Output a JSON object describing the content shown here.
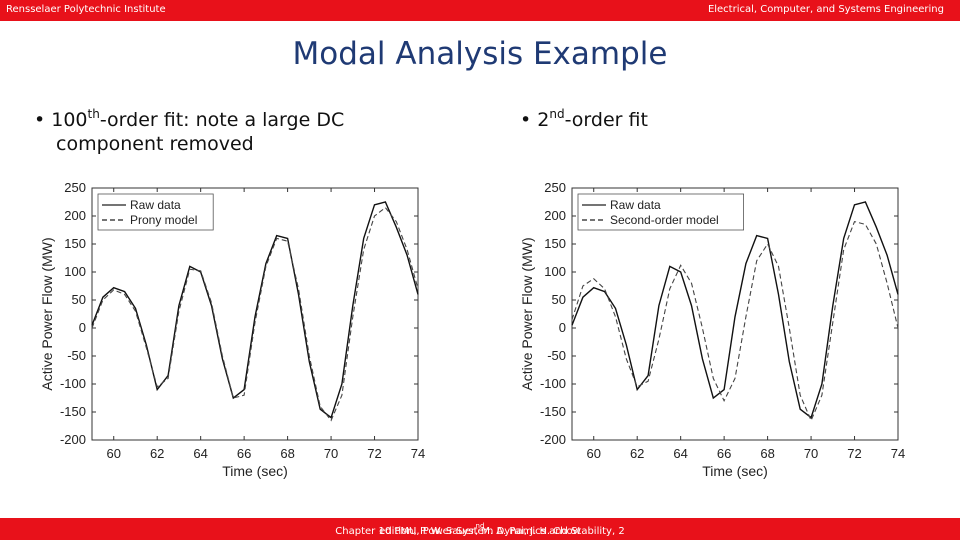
{
  "header": {
    "left": "Rensselaer Polytechnic Institute",
    "right": "Electrical, Computer, and Systems Engineering"
  },
  "title": "Modal Analysis Example",
  "bullets": {
    "left": {
      "prefix": "• 100",
      "sup": "th",
      "rest": "-order fit: note a large DC",
      "line2": "component removed"
    },
    "right": {
      "prefix": "• 2",
      "sup": "nd",
      "rest": "-order fit"
    }
  },
  "footer": {
    "pre": "Chapter 10 PMU, Power System Dynamics and Stability, 2",
    "sup": "nd",
    "post": " edition, P. W. Sauer, M. A. Pai, J. H. Chow"
  },
  "chart_data": [
    {
      "type": "line",
      "xlabel": "Time (sec)",
      "ylabel": "Active Power Flow (MW)",
      "xlim": [
        59,
        74
      ],
      "ylim": [
        -200,
        250
      ],
      "xticks": [
        "60",
        "62",
        "64",
        "66",
        "68",
        "70",
        "72",
        "74"
      ],
      "yticks": [
        "250",
        "200",
        "150",
        "100",
        "50",
        "0",
        "-50",
        "-100",
        "-150",
        "-200"
      ],
      "legend_position": "top-left",
      "series": [
        {
          "name": "Raw data",
          "style": "solid",
          "x": [
            59,
            59.5,
            60,
            60.5,
            61,
            61.5,
            62,
            62.5,
            63,
            63.5,
            64,
            64.5,
            65,
            65.5,
            66,
            66.5,
            67,
            67.5,
            68,
            68.5,
            69,
            69.5,
            70,
            70.5,
            71,
            71.5,
            72,
            72.5,
            73,
            73.5,
            74
          ],
          "y": [
            5,
            55,
            72,
            65,
            35,
            -30,
            -110,
            -85,
            40,
            110,
            100,
            40,
            -55,
            -125,
            -110,
            20,
            115,
            165,
            160,
            60,
            -60,
            -145,
            -160,
            -100,
            40,
            160,
            220,
            225,
            180,
            130,
            60
          ]
        },
        {
          "name": "Prony model",
          "style": "dashed",
          "x": [
            59,
            59.5,
            60,
            60.5,
            61,
            61.5,
            62,
            62.5,
            63,
            63.5,
            64,
            64.5,
            65,
            65.5,
            66,
            66.5,
            67,
            67.5,
            68,
            68.5,
            69,
            69.5,
            70,
            70.5,
            71,
            71.5,
            72,
            72.5,
            73,
            73.5,
            74
          ],
          "y": [
            0,
            50,
            68,
            60,
            30,
            -35,
            -105,
            -90,
            30,
            105,
            102,
            45,
            -50,
            -125,
            -120,
            10,
            110,
            160,
            155,
            70,
            -50,
            -140,
            -165,
            -120,
            20,
            140,
            200,
            215,
            190,
            140,
            70
          ]
        }
      ]
    },
    {
      "type": "line",
      "xlabel": "Time (sec)",
      "ylabel": "Active Power Flow (MW)",
      "xlim": [
        59,
        74
      ],
      "ylim": [
        -200,
        250
      ],
      "xticks": [
        "60",
        "62",
        "64",
        "66",
        "68",
        "70",
        "72",
        "74"
      ],
      "yticks": [
        "250",
        "200",
        "150",
        "100",
        "50",
        "0",
        "-50",
        "-100",
        "-150",
        "-200"
      ],
      "legend_position": "top-left",
      "series": [
        {
          "name": "Raw data",
          "style": "solid",
          "x": [
            59,
            59.5,
            60,
            60.5,
            61,
            61.5,
            62,
            62.5,
            63,
            63.5,
            64,
            64.5,
            65,
            65.5,
            66,
            66.5,
            67,
            67.5,
            68,
            68.5,
            69,
            69.5,
            70,
            70.5,
            71,
            71.5,
            72,
            72.5,
            73,
            73.5,
            74
          ],
          "y": [
            5,
            55,
            72,
            65,
            35,
            -30,
            -110,
            -85,
            40,
            110,
            100,
            40,
            -55,
            -125,
            -110,
            20,
            115,
            165,
            160,
            60,
            -60,
            -145,
            -160,
            -100,
            40,
            160,
            220,
            225,
            180,
            130,
            60
          ]
        },
        {
          "name": "Second-order model",
          "style": "dashed",
          "x": [
            59,
            59.5,
            60,
            60.5,
            61,
            61.5,
            62,
            62.5,
            63,
            63.5,
            64,
            64.5,
            65,
            65.5,
            66,
            66.5,
            67,
            67.5,
            68,
            68.5,
            69,
            69.5,
            70,
            70.5,
            71,
            71.5,
            72,
            72.5,
            73,
            73.5,
            74
          ],
          "y": [
            15,
            75,
            88,
            70,
            20,
            -55,
            -105,
            -95,
            -20,
            70,
            112,
            80,
            0,
            -90,
            -130,
            -90,
            20,
            120,
            150,
            110,
            0,
            -120,
            -165,
            -120,
            10,
            140,
            190,
            185,
            150,
            80,
            0
          ]
        }
      ]
    }
  ]
}
